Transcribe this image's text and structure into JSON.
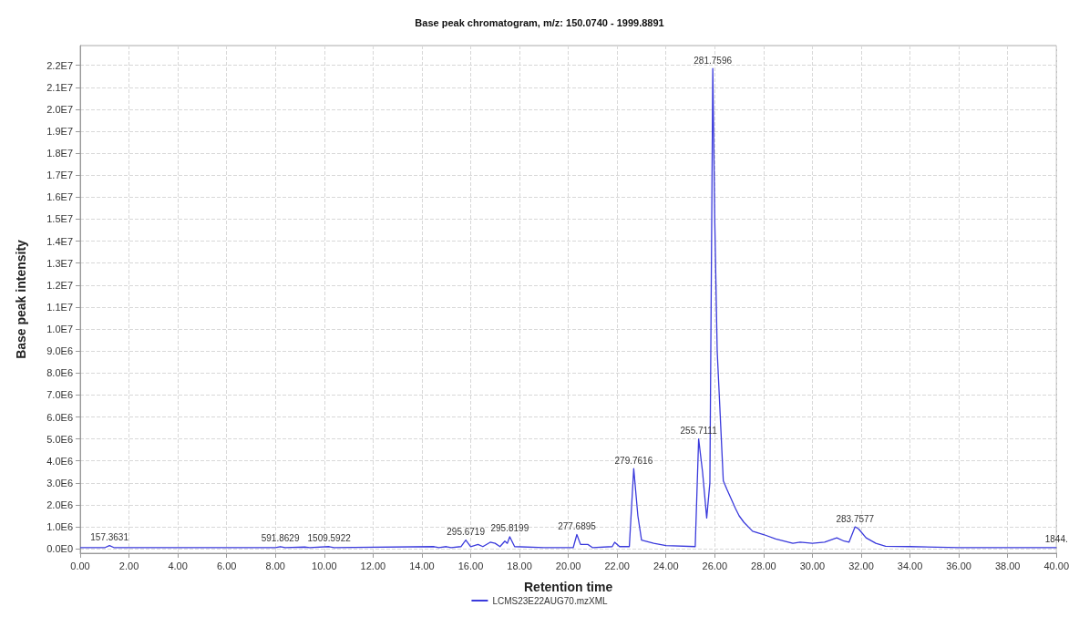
{
  "chart_data": {
    "type": "line",
    "title": "Base peak chromatogram, m/z: 150.0740 - 1999.8891",
    "xlabel": "Retention time",
    "ylabel": "Base peak intensity",
    "x": [
      0,
      1.0,
      1.2,
      1.4,
      8.0,
      8.2,
      8.4,
      9.2,
      9.4,
      10.2,
      10.4,
      14.5,
      14.7,
      15.0,
      15.2,
      15.6,
      15.8,
      16.0,
      16.3,
      16.5,
      16.8,
      17.0,
      17.2,
      17.4,
      17.5,
      17.6,
      17.8,
      19.0,
      20.2,
      20.35,
      20.5,
      20.8,
      21.0,
      21.8,
      21.9,
      22.1,
      22.5,
      22.68,
      22.85,
      23.0,
      23.5,
      24.0,
      25.2,
      25.34,
      25.5,
      25.67,
      25.8,
      25.92,
      26.0,
      26.1,
      26.35,
      26.5,
      26.85,
      27.0,
      27.2,
      27.55,
      28.0,
      28.5,
      29.2,
      29.5,
      30.0,
      30.5,
      31.0,
      31.3,
      31.5,
      31.75,
      31.9,
      32.2,
      32.6,
      33.0,
      34.0,
      36.0,
      40.0
    ],
    "series": [
      {
        "name": "LCMS23E22AUG70.mzXML",
        "color": "#3a3adc",
        "values": [
          50000,
          50000,
          150000,
          50000,
          50000,
          100000,
          50000,
          80000,
          50000,
          100000,
          50000,
          100000,
          50000,
          100000,
          50000,
          100000,
          400000,
          100000,
          200000,
          100000,
          300000,
          250000,
          100000,
          350000,
          250000,
          550000,
          100000,
          50000,
          50000,
          650000,
          200000,
          200000,
          50000,
          100000,
          300000,
          100000,
          100000,
          3650000,
          1500000,
          400000,
          250000,
          150000,
          100000,
          5000000,
          3500000,
          1400000,
          3000000,
          21860000,
          15000000,
          9000000,
          3100000,
          2700000,
          1830000,
          1500000,
          1200000,
          800000,
          650000,
          450000,
          250000,
          300000,
          250000,
          300000,
          500000,
          350000,
          300000,
          1000000,
          900000,
          500000,
          250000,
          120000,
          100000,
          50000,
          50000
        ]
      }
    ],
    "annotations": [
      {
        "text": "157.3631",
        "x": 1.2,
        "y": 150000
      },
      {
        "text": "591.8629",
        "x": 8.2,
        "y": 100000
      },
      {
        "text": "1509.5922",
        "x": 10.2,
        "y": 100000
      },
      {
        "text": "295.6719",
        "x": 15.8,
        "y": 400000
      },
      {
        "text": "295.8199",
        "x": 17.6,
        "y": 550000
      },
      {
        "text": "277.6895",
        "x": 20.35,
        "y": 650000
      },
      {
        "text": "279.7616",
        "x": 22.68,
        "y": 3650000
      },
      {
        "text": "255.7111",
        "x": 25.34,
        "y": 5000000
      },
      {
        "text": "281.7596",
        "x": 25.92,
        "y": 21860000
      },
      {
        "text": "283.7577",
        "x": 31.75,
        "y": 1000000
      },
      {
        "text": "1844.",
        "x": 40.0,
        "y": 50000
      }
    ],
    "xlim": [
      0,
      40
    ],
    "ylim": [
      -200000,
      22900000
    ],
    "xticks": [
      {
        "value": 0,
        "label": "0.00"
      },
      {
        "value": 2,
        "label": "2.00"
      },
      {
        "value": 4,
        "label": "4.00"
      },
      {
        "value": 6,
        "label": "6.00"
      },
      {
        "value": 8,
        "label": "8.00"
      },
      {
        "value": 10,
        "label": "10.00"
      },
      {
        "value": 12,
        "label": "12.00"
      },
      {
        "value": 14,
        "label": "14.00"
      },
      {
        "value": 16,
        "label": "16.00"
      },
      {
        "value": 18,
        "label": "18.00"
      },
      {
        "value": 20,
        "label": "20.00"
      },
      {
        "value": 22,
        "label": "22.00"
      },
      {
        "value": 24,
        "label": "24.00"
      },
      {
        "value": 26,
        "label": "26.00"
      },
      {
        "value": 28,
        "label": "28.00"
      },
      {
        "value": 30,
        "label": "30.00"
      },
      {
        "value": 32,
        "label": "32.00"
      },
      {
        "value": 34,
        "label": "34.00"
      },
      {
        "value": 36,
        "label": "36.00"
      },
      {
        "value": 38,
        "label": "38.00"
      },
      {
        "value": 40,
        "label": "40.00"
      }
    ],
    "yticks": [
      {
        "value": 0,
        "label": "0.0E0"
      },
      {
        "value": 1000000,
        "label": "1.0E6"
      },
      {
        "value": 2000000,
        "label": "2.0E6"
      },
      {
        "value": 3000000,
        "label": "3.0E6"
      },
      {
        "value": 4000000,
        "label": "4.0E6"
      },
      {
        "value": 5000000,
        "label": "5.0E6"
      },
      {
        "value": 6000000,
        "label": "6.0E6"
      },
      {
        "value": 7000000,
        "label": "7.0E6"
      },
      {
        "value": 8000000,
        "label": "8.0E6"
      },
      {
        "value": 9000000,
        "label": "9.0E6"
      },
      {
        "value": 10000000,
        "label": "1.0E7"
      },
      {
        "value": 11000000,
        "label": "1.1E7"
      },
      {
        "value": 12000000,
        "label": "1.2E7"
      },
      {
        "value": 13000000,
        "label": "1.3E7"
      },
      {
        "value": 14000000,
        "label": "1.4E7"
      },
      {
        "value": 15000000,
        "label": "1.5E7"
      },
      {
        "value": 16000000,
        "label": "1.6E7"
      },
      {
        "value": 17000000,
        "label": "1.7E7"
      },
      {
        "value": 18000000,
        "label": "1.8E7"
      },
      {
        "value": 19000000,
        "label": "1.9E7"
      },
      {
        "value": 20000000,
        "label": "2.0E7"
      },
      {
        "value": 21000000,
        "label": "2.1E7"
      },
      {
        "value": 22000000,
        "label": "2.2E7"
      }
    ],
    "grid": true,
    "legend": "bottom",
    "marker": "none",
    "line_style": "solid"
  }
}
